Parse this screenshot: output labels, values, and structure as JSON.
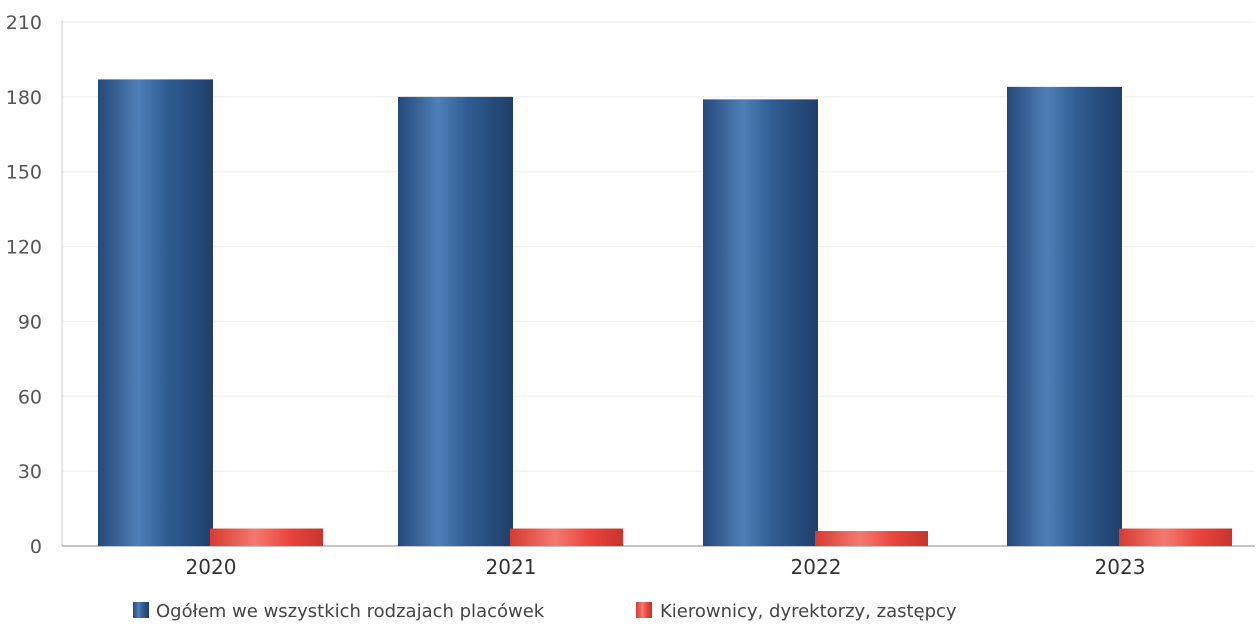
{
  "chart_data": {
    "type": "bar",
    "categories": [
      "2020",
      "2021",
      "2022",
      "2023"
    ],
    "series": [
      {
        "name": "Ogółem we wszystkich rodzajach placówek",
        "values": [
          187,
          180,
          179,
          184
        ],
        "color": "#2f5d93"
      },
      {
        "name": "Kierownicy, dyrektorzy, zastępcy",
        "values": [
          7,
          7,
          6,
          7
        ],
        "color": "#e8453c"
      }
    ],
    "yticks": [
      "0",
      "30",
      "60",
      "90",
      "120",
      "150",
      "180",
      "210"
    ],
    "ylim": [
      0,
      210
    ],
    "grid": true,
    "legend": "bottom"
  }
}
